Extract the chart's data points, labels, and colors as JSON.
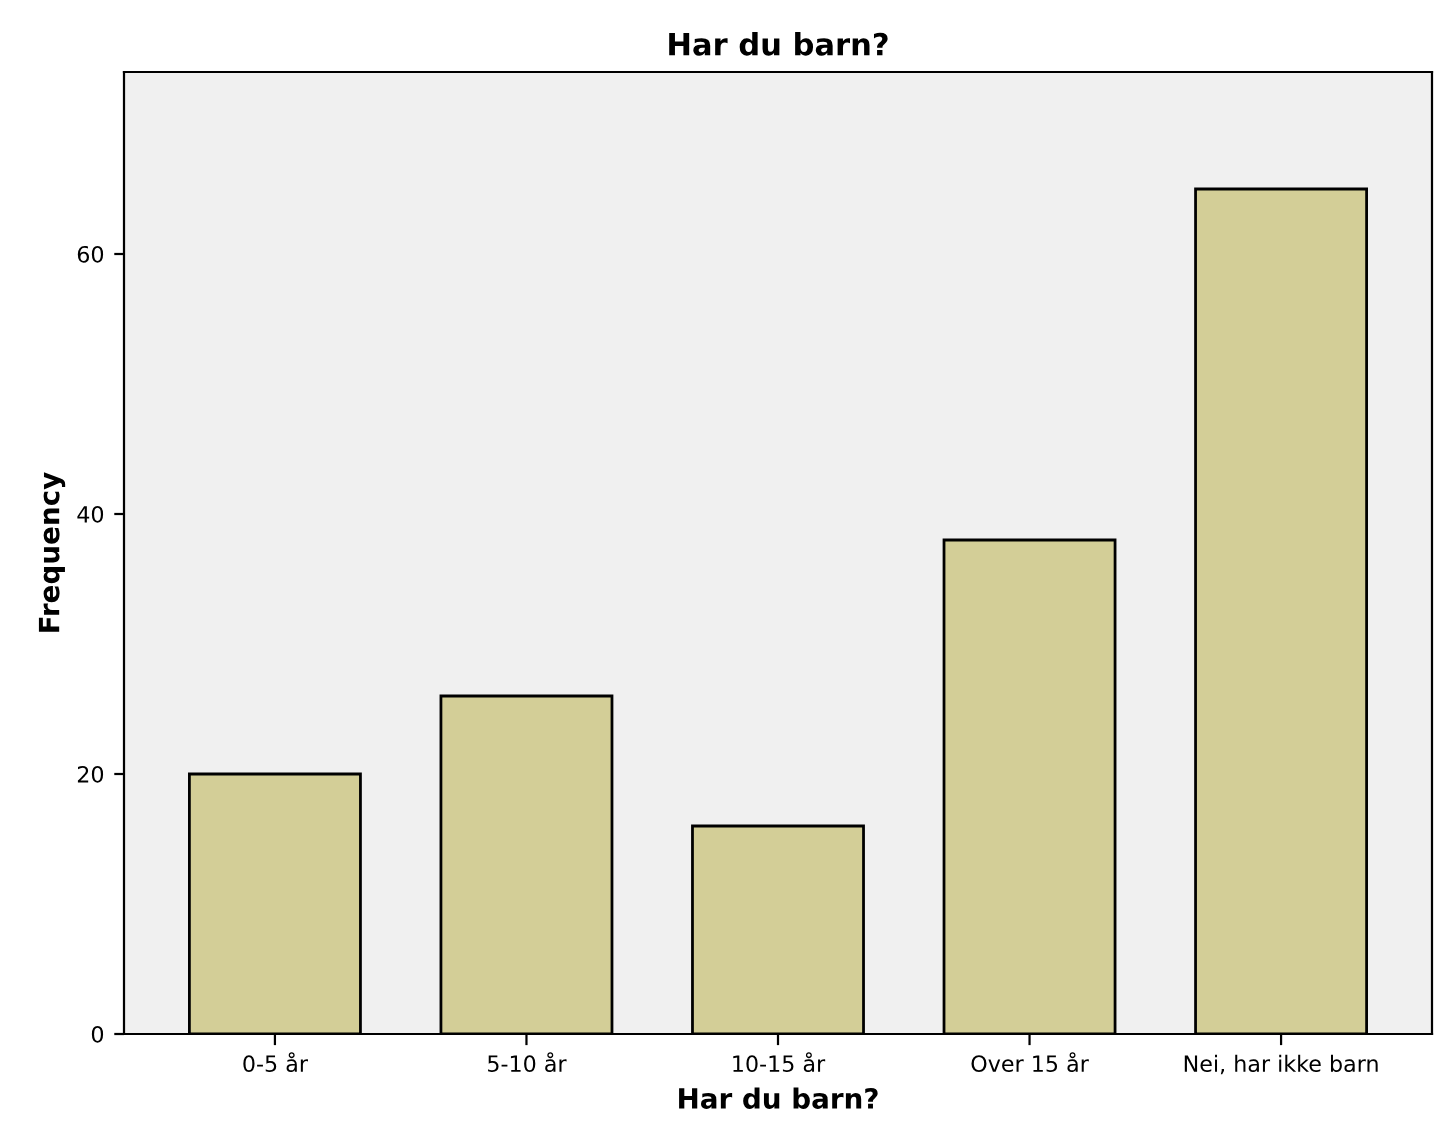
{
  "chart_data": {
    "type": "bar",
    "title": "Har du barn?",
    "xlabel": "Har du barn?",
    "ylabel": "Frequency",
    "categories": [
      "0-5 år",
      "5-10 år",
      "10-15 år",
      "Over 15 år",
      "Nei, har ikke barn"
    ],
    "values": [
      20,
      26,
      16,
      38,
      65
    ],
    "color": "#d3ce97",
    "ylim": [
      0,
      74
    ],
    "yticks": [
      0,
      20,
      40,
      60
    ],
    "grid": false
  }
}
